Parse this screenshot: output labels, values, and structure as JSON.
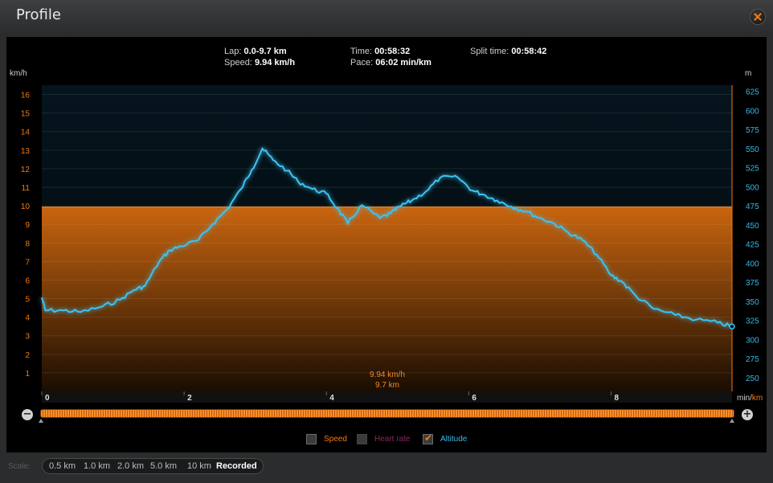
{
  "window": {
    "title": "Profile"
  },
  "stats": {
    "lap_label": "Lap:",
    "lap_value": "0.0-9.7 km",
    "speed_label": "Speed:",
    "speed_value": "9.94 km/h",
    "time_label": "Time:",
    "time_value": "00:58:32",
    "pace_label": "Pace:",
    "pace_value": "06:02 min/km",
    "split_label": "Split time:",
    "split_value": "00:58:42"
  },
  "axis": {
    "left_unit": "km/h",
    "right_unit": "m",
    "bottom_unit_a": "min/",
    "bottom_unit_b": "km"
  },
  "marker": {
    "speed": "9.94 km/h",
    "distance": "9.7 km"
  },
  "legend": {
    "speed": "Speed",
    "heart_rate": "Heart rate",
    "altitude": "Altitude"
  },
  "scale": {
    "label": "Scale:",
    "options": [
      "0.5 km",
      "1.0 km",
      "2.0 km",
      "5.0 km",
      "10 km",
      "Recorded"
    ],
    "selected": "Recorded"
  },
  "colors": {
    "speed": "#f07a14",
    "altitude": "#39b8e6",
    "heart_rate": "#8a2a5c"
  },
  "chart_data": {
    "type": "area",
    "x_ticks": [
      "0",
      "2",
      "4",
      "6",
      "8"
    ],
    "xlim": [
      0,
      9.7
    ],
    "speed": {
      "y_ticks": [
        "1",
        "2",
        "3",
        "4",
        "5",
        "6",
        "7",
        "8",
        "9",
        "10",
        "11",
        "12",
        "13",
        "14",
        "15",
        "16"
      ],
      "ylim": [
        0,
        16.5
      ],
      "value": 9.94
    },
    "altitude": {
      "y_ticks": [
        "250",
        "275",
        "300",
        "325",
        "350",
        "375",
        "400",
        "425",
        "450",
        "475",
        "500",
        "525",
        "550",
        "575",
        "600",
        "625"
      ],
      "ylim": [
        232,
        633
      ],
      "x": [
        0,
        0.05,
        0.3,
        0.55,
        0.85,
        1.1,
        1.3,
        1.45,
        1.65,
        1.8,
        1.95,
        2.2,
        2.4,
        2.6,
        2.8,
        2.95,
        3.1,
        3.25,
        3.45,
        3.6,
        3.8,
        4.0,
        4.15,
        4.3,
        4.5,
        4.75,
        4.9,
        5.05,
        5.2,
        5.4,
        5.6,
        5.85,
        6.05,
        6.2,
        6.4,
        6.6,
        6.8,
        7.0,
        7.2,
        7.4,
        7.6,
        7.8,
        8.0,
        8.15,
        8.35,
        8.6,
        8.9,
        9.2,
        9.5,
        9.7
      ],
      "y": [
        355,
        338,
        338,
        336,
        343,
        352,
        365,
        370,
        402,
        417,
        422,
        430,
        451,
        470,
        497,
        522,
        550,
        535,
        521,
        507,
        497,
        491,
        472,
        452,
        476,
        459,
        465,
        475,
        482,
        494,
        512,
        512,
        495,
        490,
        482,
        474,
        468,
        459,
        452,
        440,
        430,
        411,
        384,
        376,
        357,
        340,
        332,
        326,
        322,
        317
      ]
    },
    "series": [
      {
        "name": "Speed"
      },
      {
        "name": "Altitude"
      }
    ]
  }
}
